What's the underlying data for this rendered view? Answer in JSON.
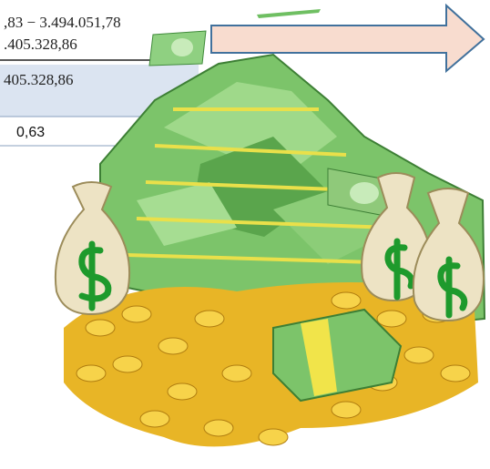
{
  "formula": {
    "line1": ",83 − 3.494.051,78",
    "line2": ".405.328,86"
  },
  "result_row": {
    "value": "405.328,86"
  },
  "ratio_row": {
    "value": "0,63"
  }
}
